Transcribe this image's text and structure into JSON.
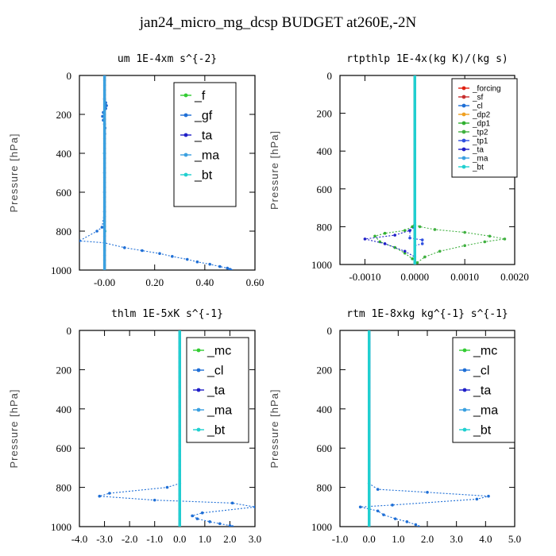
{
  "title": "jan24_micro_mg_dcsp  BUDGET at260E,-2N",
  "colors": {
    "_f": "#33cc33",
    "_gf": "#1f6fd6",
    "_ta": "#2020c8",
    "_ma": "#3aa0e0",
    "_bt": "#20d0d0",
    "_mc": "#33cc33",
    "_cl": "#1f6fd6",
    "_forcing": "#e02010",
    "_sf": "#c83030",
    "_dp2": "#f0a020",
    "_dp1": "#30b030",
    "_tp2": "#40b040",
    "_tp1": "#3050e0"
  },
  "chart_data": [
    {
      "type": "line",
      "title": "um  1E-4xm s^{-2}",
      "ylabel": "Pressure [hPa]",
      "xlim": [
        -0.1,
        0.6
      ],
      "ylim": [
        1000,
        0
      ],
      "xticks": [
        "-0.00",
        "0.20",
        "0.40",
        "0.60"
      ],
      "yticks": [
        "0",
        "200",
        "400",
        "600",
        "800",
        "1000"
      ],
      "legend_placement": "top-right",
      "series": [
        {
          "name": "_f",
          "x": [
            0,
            0
          ],
          "y": [
            0,
            1000
          ]
        },
        {
          "name": "_gf",
          "x": [
            0,
            0,
            0.005,
            0.008,
            0.005,
            -0.005,
            -0.008,
            -0.005,
            0,
            0.002,
            0.001,
            0,
            0,
            0,
            0,
            -0.01,
            -0.03,
            -0.1,
            0.0,
            0.08,
            0.15,
            0.22,
            0.27,
            0.33,
            0.37,
            0.42,
            0.46,
            0.49,
            0.5,
            0.505
          ],
          "y": [
            0,
            120,
            140,
            155,
            170,
            190,
            210,
            230,
            250,
            270,
            300,
            400,
            500,
            600,
            700,
            780,
            800,
            850,
            860,
            885,
            900,
            915,
            930,
            945,
            958,
            970,
            982,
            990,
            996,
            1000
          ]
        },
        {
          "name": "_ta",
          "x": [
            0,
            0
          ],
          "y": [
            0,
            1000
          ]
        },
        {
          "name": "_ma",
          "x": [
            0,
            0
          ],
          "y": [
            0,
            1000
          ]
        },
        {
          "name": "_bt",
          "x": [
            0,
            0,
            0.002,
            0
          ],
          "y": [
            0,
            400,
            800,
            1000
          ]
        }
      ]
    },
    {
      "type": "line",
      "title": "rtpthlp  1E-4x(kg K)/(kg s)",
      "ylabel": "Pressure [hPa]",
      "xlim": [
        -0.0015,
        0.002
      ],
      "ylim": [
        1000,
        0
      ],
      "xticks": [
        "-0.0010",
        "0.0000",
        "0.0010",
        "0.0020"
      ],
      "yticks": [
        "0",
        "200",
        "400",
        "600",
        "800",
        "1000"
      ],
      "legend_placement": "top-right",
      "series": [
        {
          "name": "_forcing",
          "x": [
            0,
            0
          ],
          "y": [
            0,
            1000
          ]
        },
        {
          "name": "_sf",
          "x": [
            0,
            0
          ],
          "y": [
            0,
            1000
          ]
        },
        {
          "name": "_cl",
          "x": [
            0,
            0
          ],
          "y": [
            0,
            1000
          ]
        },
        {
          "name": "_dp2",
          "x": [
            0,
            0
          ],
          "y": [
            0,
            1000
          ]
        },
        {
          "name": "_dp1",
          "x": [
            0,
            0,
            -5e-05,
            -0.0002,
            -0.0006,
            -0.0008,
            -0.0007,
            -0.0004,
            -0.0002,
            -5e-05,
            0,
            0
          ],
          "y": [
            0,
            780,
            800,
            820,
            835,
            850,
            880,
            910,
            940,
            970,
            990,
            1000
          ]
        },
        {
          "name": "_tp2",
          "x": [
            0,
            0,
            0.0001,
            0.0004,
            0.001,
            0.0015,
            0.0018,
            0.0014,
            0.001,
            0.0005,
            0.0002,
            5e-05,
            0
          ],
          "y": [
            0,
            790,
            800,
            815,
            830,
            850,
            865,
            880,
            900,
            930,
            960,
            990,
            1000
          ]
        },
        {
          "name": "_tp1",
          "x": [
            0,
            0,
            -0.0001,
            -0.0001,
            0.00015,
            0.00015,
            0,
            0
          ],
          "y": [
            0,
            800,
            820,
            860,
            870,
            890,
            900,
            1000
          ]
        },
        {
          "name": "_ta",
          "x": [
            0,
            0,
            -0.0001,
            -0.0004,
            -0.001,
            -0.0006,
            -0.0002,
            0,
            0
          ],
          "y": [
            0,
            800,
            820,
            845,
            865,
            890,
            930,
            960,
            1000
          ]
        },
        {
          "name": "_ma",
          "x": [
            0,
            0
          ],
          "y": [
            0,
            1000
          ]
        },
        {
          "name": "_bt",
          "x": [
            0,
            0
          ],
          "y": [
            0,
            1000
          ]
        }
      ]
    },
    {
      "type": "line",
      "title": "thlm  1E-5xK s^{-1}",
      "ylabel": "Pressure [hPa]",
      "xlim": [
        -4.0,
        3.0
      ],
      "ylim": [
        1000,
        0
      ],
      "xticks": [
        "-4.0",
        "-3.0",
        "-2.0",
        "-1.0",
        "0.0",
        "1.0",
        "2.0",
        "3.0"
      ],
      "yticks": [
        "0",
        "200",
        "400",
        "600",
        "800",
        "1000"
      ],
      "legend_placement": "top-right",
      "series": [
        {
          "name": "_mc",
          "x": [
            0,
            0
          ],
          "y": [
            0,
            1000
          ]
        },
        {
          "name": "_cl",
          "x": [
            0,
            0,
            -0.5,
            -2.8,
            -3.2,
            -1.0,
            2.1,
            3.0,
            0.9,
            0.5,
            0.7,
            1.2,
            1.6,
            2.0,
            2.1
          ],
          "y": [
            0,
            780,
            800,
            830,
            845,
            865,
            880,
            900,
            930,
            945,
            960,
            975,
            985,
            995,
            1000
          ]
        },
        {
          "name": "_ta",
          "x": [
            0,
            0
          ],
          "y": [
            0,
            1000
          ]
        },
        {
          "name": "_ma",
          "x": [
            0,
            0
          ],
          "y": [
            0,
            1000
          ]
        },
        {
          "name": "_bt",
          "x": [
            0,
            0
          ],
          "y": [
            0,
            1000
          ]
        }
      ]
    },
    {
      "type": "line",
      "title": "rtm  1E-8xkg kg^{-1} s^{-1}",
      "ylabel": "Pressure [hPa]",
      "xlim": [
        -1.0,
        5.0
      ],
      "ylim": [
        1000,
        0
      ],
      "xticks": [
        "-1.0",
        "0.0",
        "1.0",
        "2.0",
        "3.0",
        "4.0",
        "5.0"
      ],
      "yticks": [
        "0",
        "200",
        "400",
        "600",
        "800",
        "1000"
      ],
      "legend_placement": "top-right",
      "series": [
        {
          "name": "_mc",
          "x": [
            0,
            0
          ],
          "y": [
            0,
            1000
          ]
        },
        {
          "name": "_cl",
          "x": [
            0,
            0,
            0.3,
            2.0,
            4.1,
            3.7,
            0.8,
            -0.3,
            0.3,
            0.5,
            0.9,
            1.3,
            1.6,
            1.7
          ],
          "y": [
            0,
            780,
            810,
            825,
            845,
            860,
            890,
            900,
            920,
            940,
            960,
            975,
            990,
            1000
          ]
        },
        {
          "name": "_ta",
          "x": [
            0,
            0
          ],
          "y": [
            0,
            1000
          ]
        },
        {
          "name": "_ma",
          "x": [
            0,
            0
          ],
          "y": [
            0,
            1000
          ]
        },
        {
          "name": "_bt",
          "x": [
            0,
            0
          ],
          "y": [
            0,
            1000
          ]
        }
      ]
    }
  ]
}
